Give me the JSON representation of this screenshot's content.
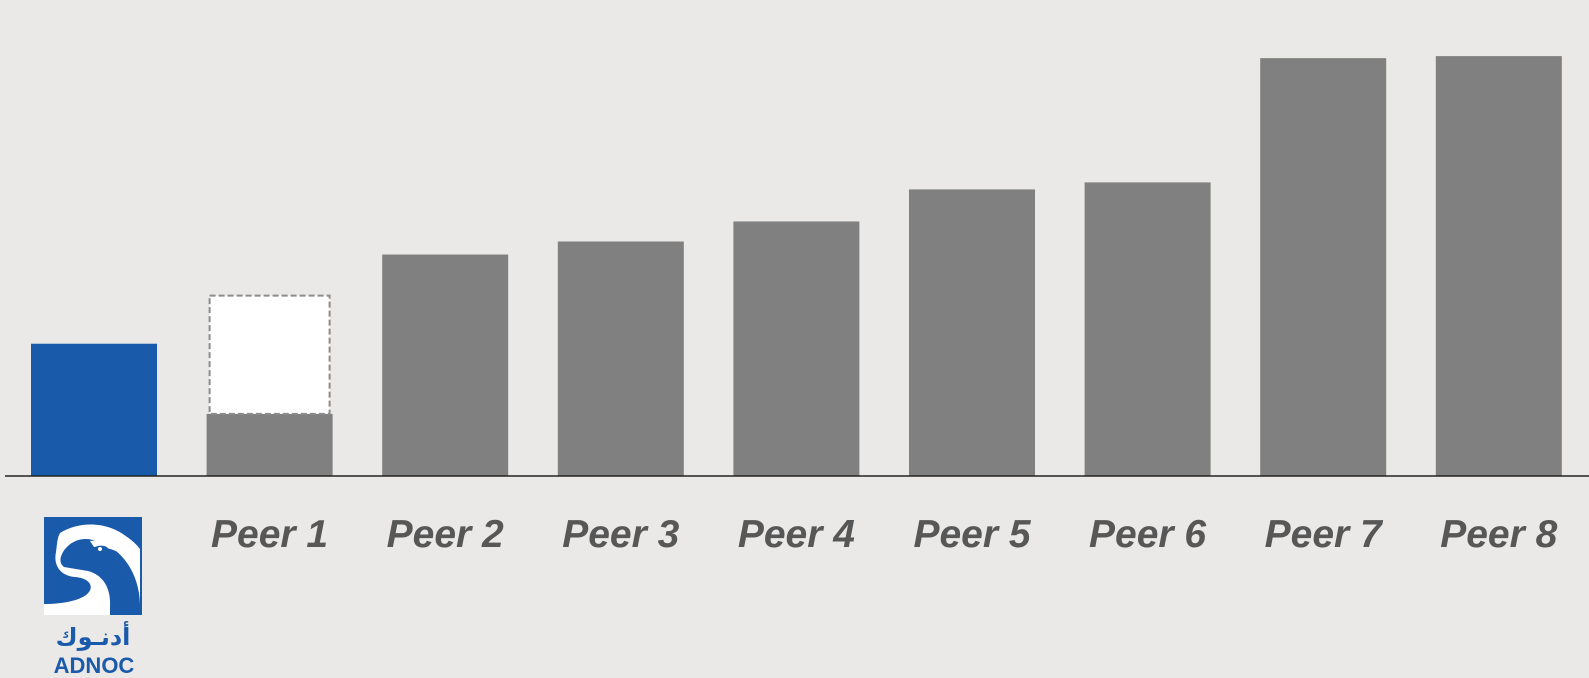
{
  "chart_data": {
    "type": "bar",
    "categories": [
      "ADNOC",
      "Peer 1",
      "Peer 2",
      "Peer 3",
      "Peer 4",
      "Peer 5",
      "Peer 6",
      "Peer 7",
      "Peer 8"
    ],
    "values": [
      132,
      180,
      221,
      234,
      254,
      286,
      293,
      417,
      419
    ],
    "segments": {
      "Peer 1": {
        "solid": 62,
        "dashed_outline": 118
      }
    },
    "title": "",
    "xlabel": "",
    "ylabel": "",
    "ylim": [
      0,
      475
    ],
    "grid": false,
    "legend": "none",
    "colors": {
      "highlight": "#1a5aab",
      "peers": "#808080",
      "dashed_fill": "#ffffff",
      "dashed_stroke": "#8c8c8c",
      "baseline": "#222222",
      "labels": "#575757"
    }
  },
  "logo": {
    "name_latin": "ADNOC",
    "name_arabic": "أدنـوك",
    "icon": "falcon-icon",
    "color": "#1a5aab"
  }
}
